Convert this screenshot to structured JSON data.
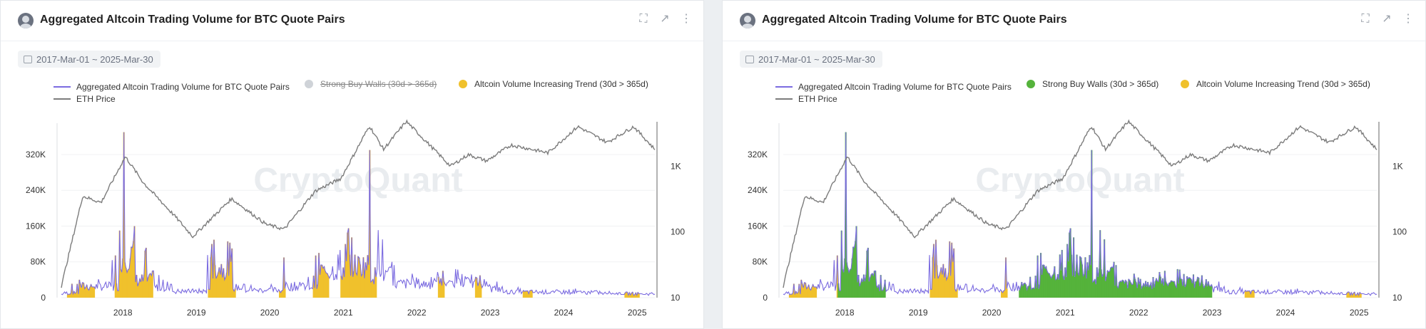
{
  "panels": [
    {
      "title": "Aggregated Altcoin Trading Volume for BTC Quote Pairs",
      "date_range": "2017-Mar-01 ~ 2025-Mar-30",
      "legend": [
        {
          "label": "Aggregated Altcoin Trading Volume for BTC Quote Pairs",
          "kind": "line",
          "color": "#7b6be0",
          "disabled": false
        },
        {
          "label": "Strong Buy Walls (30d > 365d)",
          "kind": "dot",
          "color": "#cfd3d8",
          "disabled": true
        },
        {
          "label": "Altcoin Volume Increasing Trend (30d > 365d)",
          "kind": "dot",
          "color": "#f0c12c",
          "disabled": false
        },
        {
          "label": "ETH Price",
          "kind": "line",
          "color": "#7c7c7c",
          "disabled": false
        }
      ]
    },
    {
      "title": "Aggregated Altcoin Trading Volume for BTC Quote Pairs",
      "date_range": "2017-Mar-01 ~ 2025-Mar-30",
      "legend": [
        {
          "label": "Aggregated Altcoin Trading Volume for BTC Quote Pairs",
          "kind": "line",
          "color": "#7b6be0",
          "disabled": false
        },
        {
          "label": "Strong Buy Walls (30d > 365d)",
          "kind": "dot",
          "color": "#55b33b",
          "disabled": false
        },
        {
          "label": "Altcoin Volume Increasing Trend (30d > 365d)",
          "kind": "dot",
          "color": "#f0c12c",
          "disabled": false
        },
        {
          "label": "ETH Price",
          "kind": "line",
          "color": "#7c7c7c",
          "disabled": false
        }
      ]
    }
  ],
  "watermark": "CryptoQuant",
  "chart_data": [
    {
      "type": "area",
      "title": "Aggregated Altcoin Trading Volume for BTC Quote Pairs",
      "x_range": [
        "2017-03-01",
        "2025-03-30"
      ],
      "x_ticks": [
        "2018",
        "2019",
        "2020",
        "2021",
        "2022",
        "2023",
        "2024",
        "2025"
      ],
      "y_left": {
        "ticks": [
          "0",
          "80K",
          "160K",
          "240K",
          "320K"
        ],
        "ylim": [
          0,
          390000
        ]
      },
      "y_right": {
        "scale": "log",
        "ticks": [
          "10",
          "100",
          "1K"
        ],
        "ylim": [
          10,
          4500
        ]
      },
      "series": [
        {
          "name": "Aggregated Altcoin Trading Volume for BTC Quote Pairs",
          "axis": "left",
          "points": [
            [
              "2017-03-01",
              8000
            ],
            [
              "2017-06-01",
              40000
            ],
            [
              "2017-09-01",
              35000
            ],
            [
              "2017-12-15",
              150000
            ],
            [
              "2018-01-05",
              370000
            ],
            [
              "2018-03-01",
              160000
            ],
            [
              "2018-06-01",
              60000
            ],
            [
              "2018-09-01",
              30000
            ],
            [
              "2019-01-01",
              15000
            ],
            [
              "2019-03-20",
              120000
            ],
            [
              "2019-06-25",
              110000
            ],
            [
              "2019-09-01",
              30000
            ],
            [
              "2020-01-01",
              20000
            ],
            [
              "2020-03-12",
              90000
            ],
            [
              "2020-06-01",
              35000
            ],
            [
              "2020-09-01",
              100000
            ],
            [
              "2021-01-10",
              120000
            ],
            [
              "2021-05-10",
              330000
            ],
            [
              "2021-09-01",
              80000
            ],
            [
              "2022-01-01",
              45000
            ],
            [
              "2022-05-12",
              60000
            ],
            [
              "2022-11-09",
              50000
            ],
            [
              "2023-03-01",
              25000
            ],
            [
              "2023-09-01",
              12000
            ],
            [
              "2024-03-01",
              20000
            ],
            [
              "2024-09-01",
              10000
            ],
            [
              "2025-03-30",
              8000
            ]
          ]
        },
        {
          "name": "Altcoin Volume Increasing Trend (30d > 365d)",
          "axis": "left",
          "periods": [
            [
              "2017-04-01",
              "2017-08-15"
            ],
            [
              "2017-11-20",
              "2018-06-01"
            ],
            [
              "2019-03-01",
              "2019-07-15"
            ],
            [
              "2020-02-15",
              "2020-03-20"
            ],
            [
              "2020-08-01",
              "2020-10-20"
            ],
            [
              "2020-12-20",
              "2021-06-15"
            ],
            [
              "2022-04-15",
              "2022-05-20"
            ],
            [
              "2022-10-20",
              "2022-11-20"
            ],
            [
              "2023-06-15",
              "2023-08-01"
            ],
            [
              "2024-11-01",
              "2025-01-15"
            ]
          ]
        },
        {
          "name": "Strong Buy Walls (30d > 365d)",
          "axis": "left",
          "periods": [
            [
              "2017-11-25",
              "2018-07-20"
            ],
            [
              "2020-05-15",
              "2022-04-01"
            ],
            [
              "2022-04-01",
              "2023-01-01"
            ]
          ]
        },
        {
          "name": "ETH Price",
          "axis": "right",
          "points": [
            [
              "2017-03-01",
              15
            ],
            [
              "2017-06-15",
              350
            ],
            [
              "2017-09-15",
              280
            ],
            [
              "2018-01-13",
              1400
            ],
            [
              "2018-04-15",
              550
            ],
            [
              "2018-09-12",
              180
            ],
            [
              "2018-12-15",
              85
            ],
            [
              "2019-06-25",
              320
            ],
            [
              "2019-12-15",
              130
            ],
            [
              "2020-03-13",
              110
            ],
            [
              "2020-08-15",
              420
            ],
            [
              "2020-12-20",
              650
            ],
            [
              "2021-05-11",
              4100
            ],
            [
              "2021-07-20",
              1800
            ],
            [
              "2021-11-10",
              4800
            ],
            [
              "2022-06-18",
              1000
            ],
            [
              "2022-09-15",
              1500
            ],
            [
              "2022-12-15",
              1200
            ],
            [
              "2023-04-15",
              2100
            ],
            [
              "2023-10-15",
              1600
            ],
            [
              "2024-03-12",
              4000
            ],
            [
              "2024-08-05",
              2300
            ],
            [
              "2024-12-15",
              4000
            ],
            [
              "2025-03-30",
              1800
            ]
          ]
        }
      ]
    },
    {
      "type": "area",
      "title": "Aggregated Altcoin Trading Volume for BTC Quote Pairs",
      "x_range": [
        "2017-03-01",
        "2025-03-30"
      ],
      "x_ticks": [
        "2018",
        "2019",
        "2020",
        "2021",
        "2022",
        "2023",
        "2024",
        "2025"
      ],
      "y_left": {
        "ticks": [
          "0",
          "80K",
          "160K",
          "240K",
          "320K"
        ],
        "ylim": [
          0,
          390000
        ]
      },
      "y_right": {
        "scale": "log",
        "ticks": [
          "10",
          "100",
          "1K"
        ],
        "ylim": [
          10,
          4500
        ]
      }
    }
  ]
}
